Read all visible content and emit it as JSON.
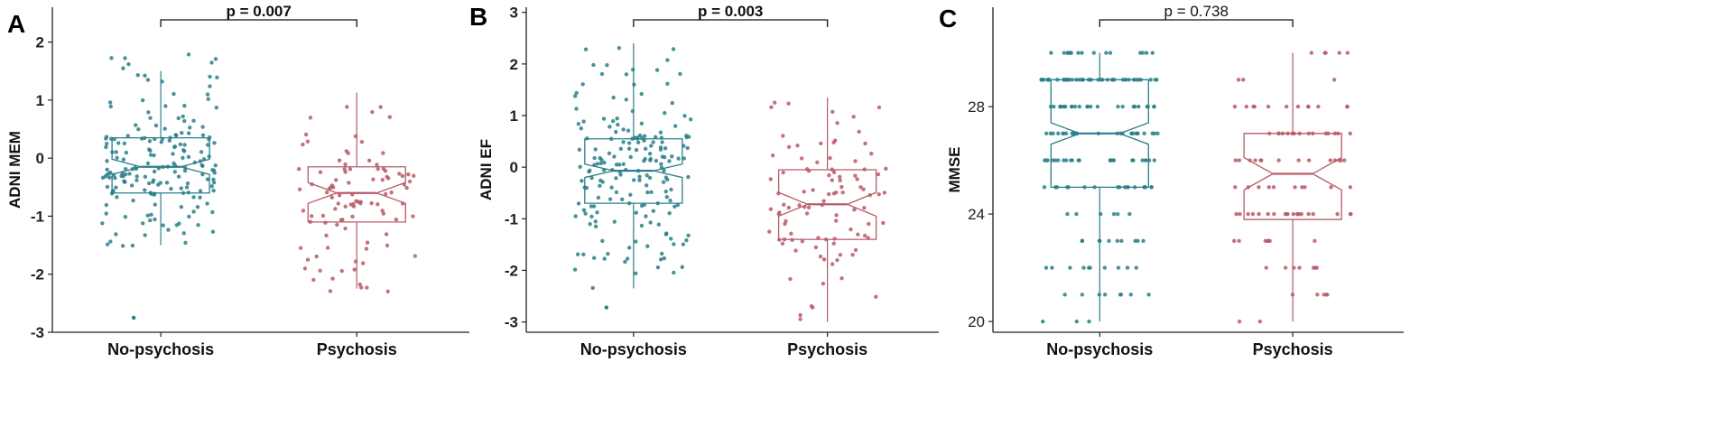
{
  "colors": {
    "no_psychosis": "#2a7f8a",
    "psychosis": "#b85a66",
    "axis": "#222222"
  },
  "chart_data": [
    {
      "panel": "A",
      "type": "box",
      "ylabel": "ADNI MEM",
      "xlabel": "",
      "ylim": [
        -3,
        2.6
      ],
      "yticks": [
        -3,
        -2,
        -1,
        0,
        1,
        2
      ],
      "categories": [
        "No-psychosis",
        "Psychosis"
      ],
      "annotation": "p = 0.007",
      "series": [
        {
          "name": "No-psychosis",
          "min": -1.5,
          "q1": -0.6,
          "median": -0.15,
          "q3": 0.35,
          "max": 1.5,
          "notch": [
            -0.28,
            -0.02
          ],
          "n_points": 190,
          "points_range": [
            -1.55,
            1.8
          ],
          "outliers": [
            -2.75
          ]
        },
        {
          "name": "Psychosis",
          "min": -2.25,
          "q1": -1.1,
          "median": -0.6,
          "q3": -0.15,
          "max": 1.13,
          "notch": [
            -0.78,
            -0.42
          ],
          "n_points": 100,
          "points_range": [
            -2.3,
            0.9
          ],
          "outliers": []
        }
      ]
    },
    {
      "panel": "B",
      "type": "box",
      "ylabel": "ADNI EF",
      "xlabel": "",
      "ylim": [
        -3.2,
        3.1
      ],
      "yticks": [
        -3,
        -2,
        -1,
        0,
        1,
        2,
        3
      ],
      "categories": [
        "No-psychosis",
        "Psychosis"
      ],
      "annotation": "p = 0.003",
      "series": [
        {
          "name": "No-psychosis",
          "min": -2.35,
          "q1": -0.7,
          "median": -0.07,
          "q3": 0.55,
          "max": 2.4,
          "notch": [
            -0.2,
            0.06
          ],
          "n_points": 190,
          "points_range": [
            -2.4,
            2.4
          ],
          "outliers": [
            -2.72
          ]
        },
        {
          "name": "Psychosis",
          "min": -3.0,
          "q1": -1.4,
          "median": -0.72,
          "q3": -0.05,
          "max": 1.35,
          "notch": [
            -0.95,
            -0.49
          ],
          "n_points": 100,
          "points_range": [
            -3.0,
            1.35
          ],
          "outliers": []
        }
      ]
    },
    {
      "panel": "C",
      "type": "box",
      "ylabel": "MMSE",
      "xlabel": "",
      "ylim": [
        19.6,
        31.7
      ],
      "yticks": [
        20,
        24,
        28
      ],
      "categories": [
        "No-psychosis",
        "Psychosis"
      ],
      "annotation": "p = 0.738",
      "series": [
        {
          "name": "No-psychosis",
          "min": 20,
          "q1": 25,
          "median": 27,
          "q3": 29,
          "max": 30,
          "notch": [
            26.6,
            27.4
          ],
          "n_points": 190,
          "points_range": [
            20,
            30
          ],
          "outliers": [],
          "discrete": true
        },
        {
          "name": "Psychosis",
          "min": 20,
          "q1": 23.8,
          "median": 25.5,
          "q3": 27,
          "max": 30,
          "notch": [
            24.9,
            26.1
          ],
          "n_points": 100,
          "points_range": [
            20,
            30
          ],
          "outliers": [],
          "discrete": true
        }
      ]
    }
  ]
}
